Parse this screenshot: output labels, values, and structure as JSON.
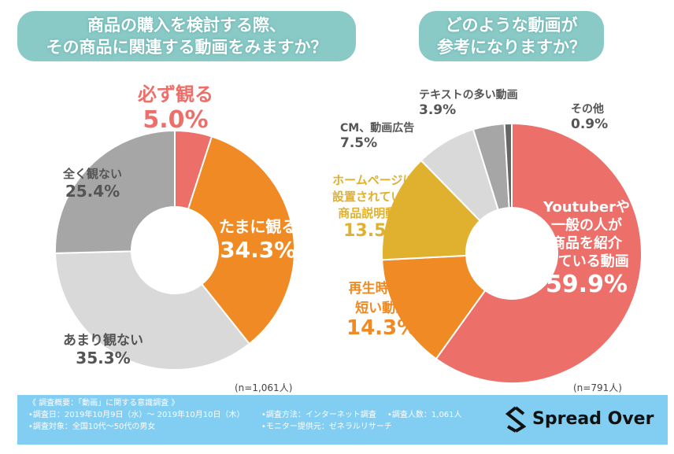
{
  "chart_data": [
    {
      "type": "pie",
      "title": "商品の購入を検討する際、その商品に関連する動画をみますか？",
      "n_label": "(n=1,061人)",
      "categories": [
        "必ず観る",
        "たまに観る",
        "あまり観ない",
        "全く観ない"
      ],
      "values": [
        5.0,
        34.3,
        35.3,
        25.4
      ],
      "labels": [
        "5.0%",
        "34.3%",
        "35.3%",
        "25.4%"
      ],
      "colors": [
        "#ec6f6a",
        "#f08a24",
        "#d9d9d9",
        "#a6a6a6"
      ]
    },
    {
      "type": "pie",
      "title": "どのような動画が参考になりますか？",
      "n_label": "(n=791人)",
      "categories": [
        "Youtuberや一般の人が商品を紹介している動画",
        "再生時間の短い動画",
        "ホームページに設置されている商品説明動画",
        "CM、動画広告",
        "テキストの多い動画",
        "その他"
      ],
      "values": [
        59.9,
        14.3,
        13.5,
        7.5,
        3.9,
        0.9
      ],
      "labels": [
        "59.9%",
        "14.3%",
        "13.5%",
        "7.5%",
        "3.9%",
        "0.9%"
      ],
      "colors": [
        "#ec6f6a",
        "#f08a24",
        "#e0b12f",
        "#d9d9d9",
        "#a6a6a6",
        "#666666"
      ]
    }
  ],
  "left_title": [
    "商品の購入を検討する際、",
    "その商品に関連する動画をみますか？"
  ],
  "right_title": [
    "どのような動画が",
    "参考になりますか？"
  ],
  "right_label_lines": {
    "youtuber": [
      "Youtuberや",
      "一般の人が",
      "商品を紹介",
      "している動画"
    ],
    "short": [
      "再生時間の",
      "短い動画"
    ],
    "hp": [
      "ホームページに",
      "設置されている",
      "商品説明動画"
    ]
  },
  "footer": {
    "heading": "《 調査概要：「動画」に関する意識調査 》",
    "date": "•調査日：2019年10月9日（水）～ 2019年10月10日（木）",
    "target": "•調査対象：全国10代～50代の男女",
    "method": "•調査方法：インターネット調査",
    "count": "•調査人数：1,061人",
    "provider": "•モニター提供元：ゼネラルリサーチ",
    "brand": "Spread Over"
  }
}
